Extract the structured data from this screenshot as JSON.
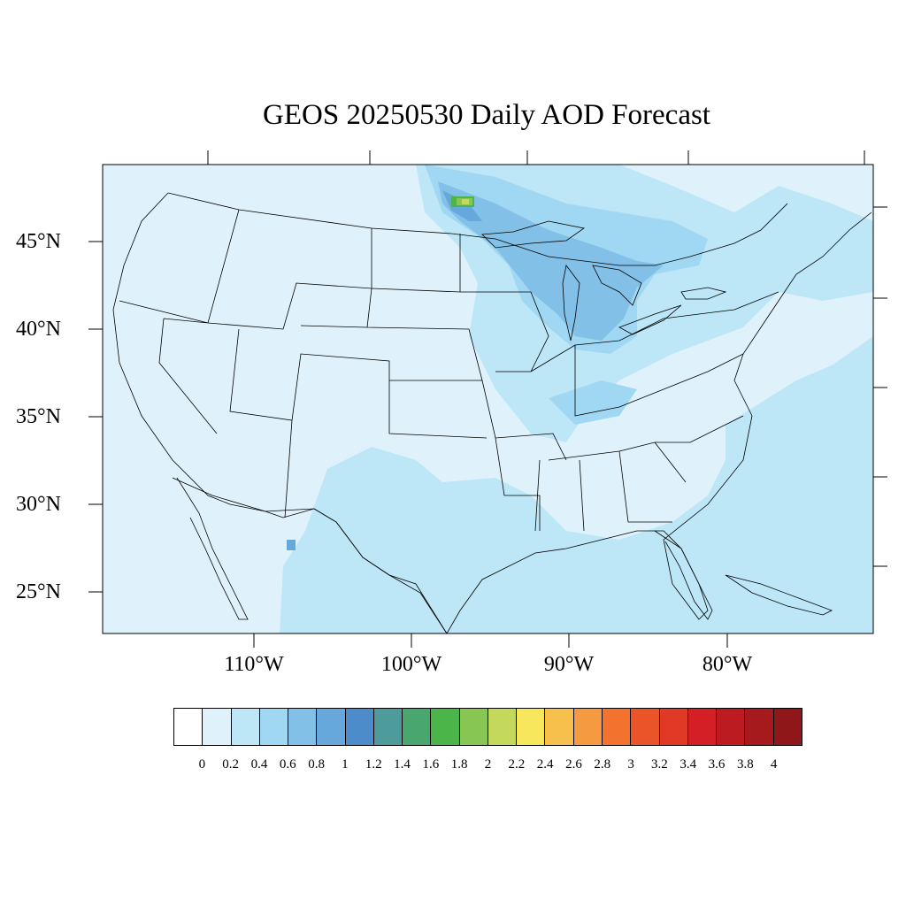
{
  "title": "GEOS 20250530 Daily AOD Forecast",
  "lat_labels": [
    "45°N",
    "40°N",
    "35°N",
    "30°N",
    "25°N"
  ],
  "lon_labels": [
    "110°W",
    "100°W",
    "90°W",
    "80°W"
  ],
  "colorbar": {
    "colors": [
      "#ffffff",
      "#dff2fb",
      "#bde6f7",
      "#a0d8f3",
      "#83c0e8",
      "#67a8dc",
      "#4d8ccb",
      "#4e9b9c",
      "#4aa66f",
      "#4bb54a",
      "#88c653",
      "#c4d95c",
      "#f7e75c",
      "#f7c04c",
      "#f59a40",
      "#f2722e",
      "#ea5428",
      "#e03a26",
      "#d41f27",
      "#bc1b22",
      "#a61a1d",
      "#8f171a"
    ],
    "tick_labels": [
      "0",
      "0.2",
      "0.4",
      "0.6",
      "0.8",
      "1",
      "1.2",
      "1.4",
      "1.6",
      "1.8",
      "2",
      "2.2",
      "2.4",
      "2.6",
      "2.8",
      "3",
      "3.2",
      "3.4",
      "3.6",
      "3.8",
      "4"
    ]
  },
  "map_colors": {
    "background": "#dff2fb",
    "level_04": "#bde6f7",
    "level_06": "#a0d8f3",
    "level_08": "#83c0e8",
    "level_10": "#67a8dc",
    "level_18": "#4bb54a",
    "level_20": "#88c653",
    "level_22": "#c4d95c"
  }
}
